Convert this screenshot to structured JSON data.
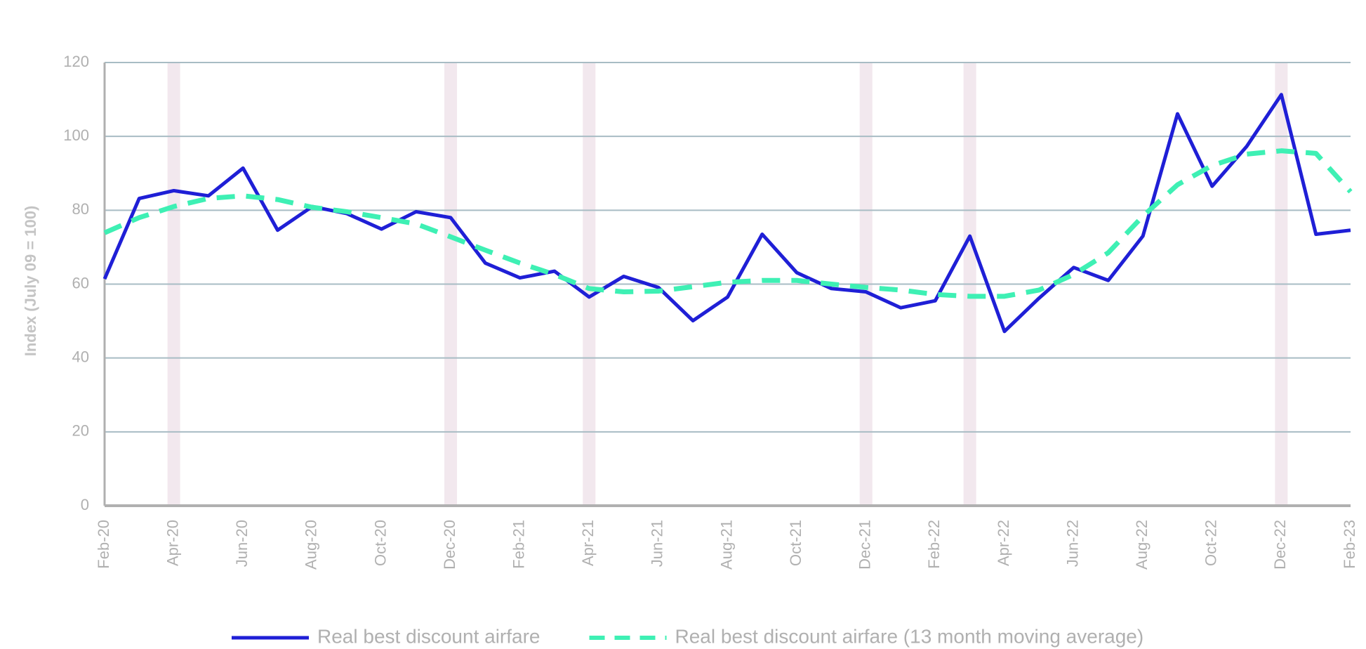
{
  "chart_data": {
    "type": "line",
    "y_label": "Index (July 09 = 100)",
    "categories": [
      "Feb-20",
      null,
      "Apr-20",
      null,
      "Jun-20",
      null,
      "Aug-20",
      null,
      "Oct-20",
      null,
      "Dec-20",
      null,
      "Feb-21",
      null,
      "Apr-21",
      null,
      "Jun-21",
      null,
      "Aug-21",
      null,
      "Oct-21",
      null,
      "Dec-21",
      null,
      "Feb-22",
      null,
      "Apr-22",
      null,
      "Jun-22",
      null,
      "Aug-22",
      null,
      "Oct-22",
      null,
      "Dec-22",
      null,
      "Feb-23"
    ],
    "series": [
      {
        "name": "Real best discount airfare",
        "color": "#1f1fd6",
        "dashed": false,
        "values": [
          61.4,
          83.2,
          85.3,
          83.9,
          91.4,
          74.6,
          81.0,
          79.1,
          74.9,
          79.6,
          78.0,
          65.7,
          61.7,
          63.5,
          56.5,
          62.1,
          59.1,
          50.1,
          56.5,
          73.5,
          63.1,
          58.8,
          57.9,
          53.6,
          55.5,
          73.0,
          47.2,
          56.2,
          64.5,
          61.0,
          73.0,
          106.1,
          86.5,
          97.3,
          111.3,
          73.5,
          74.6
        ]
      },
      {
        "name": "Real best discount airfare (13 month moving average)",
        "color": "#3ef0b4",
        "dashed": true,
        "values": [
          73.9,
          78.0,
          81.0,
          83.2,
          83.9,
          82.9,
          80.8,
          79.6,
          78.0,
          76.3,
          72.8,
          69.2,
          65.7,
          62.6,
          58.8,
          57.9,
          58.1,
          59.3,
          60.5,
          61.0,
          61.0,
          60.0,
          59.1,
          58.4,
          57.2,
          56.7,
          56.7,
          58.4,
          62.6,
          68.5,
          78.4,
          86.9,
          92.1,
          95.2,
          96.1,
          95.4,
          85.0
        ]
      }
    ],
    "ylim": [
      0,
      120
    ],
    "yticks": [
      0,
      20,
      40,
      60,
      80,
      100,
      120
    ],
    "grid": true,
    "legend": "bottom"
  }
}
